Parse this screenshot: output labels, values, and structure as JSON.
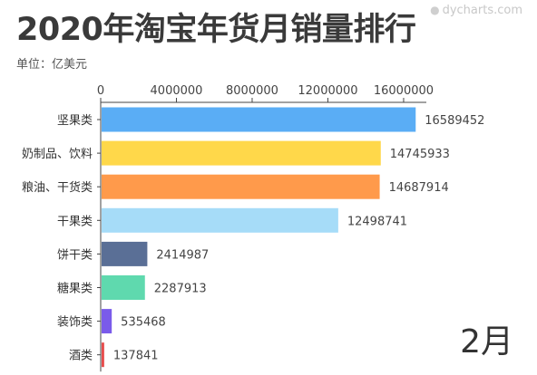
{
  "header": {
    "title": "2020年淘宝年货月销量排行",
    "unit": "单位：亿美元",
    "watermark": "dycharts.com",
    "period": "2月"
  },
  "chart_data": {
    "type": "bar",
    "orientation": "horizontal",
    "title": "2020年淘宝年货月销量排行",
    "subtitle": "单位：亿美元",
    "categories": [
      "坚果类",
      "奶制品、饮料",
      "粮油、干货类",
      "干果类",
      "饼干类",
      "糖果类",
      "装饰类",
      "酒类"
    ],
    "values": [
      16589452,
      14745933,
      14687914,
      12498741,
      2414987,
      2287913,
      535468,
      137841
    ],
    "value_labels": [
      "16589452",
      "14745933",
      "14687914",
      "12498741",
      "2414987",
      "2287913",
      "535468",
      "137841"
    ],
    "colors": [
      "#5aadf5",
      "#ffd84a",
      "#ff9a4b",
      "#a6dcf8",
      "#5a6f96",
      "#5fd9ae",
      "#7a5bea",
      "#e74c4c"
    ],
    "x_ticks": [
      0,
      4000000,
      8000000,
      12000000,
      16000000
    ],
    "x_tick_labels": [
      "0",
      "4000000",
      "8000000",
      "12000000",
      "16000000"
    ],
    "xlim": [
      0,
      17200000
    ],
    "axis_position": "top",
    "grid": false,
    "legend": "none"
  }
}
